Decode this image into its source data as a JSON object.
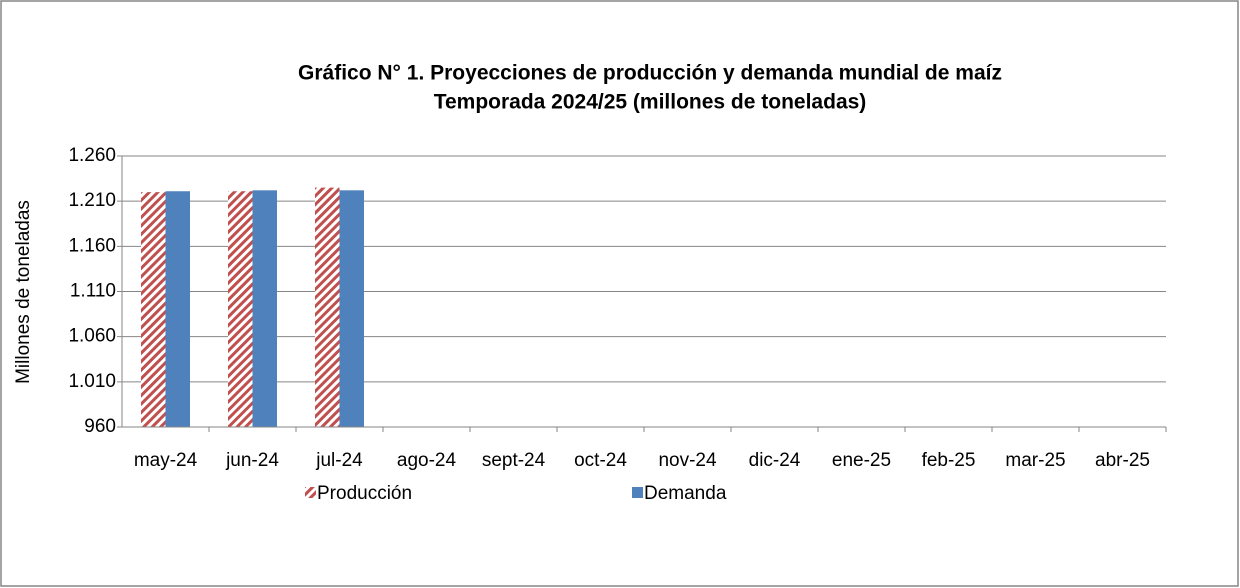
{
  "chart_data": {
    "type": "bar",
    "title": "Gráfico N° 1. Proyecciones de producción y demanda mundial de maíz",
    "subtitle": "Temporada 2024/25 (millones de toneladas)",
    "y_label": "Millones de toneladas",
    "categories": [
      "may-24",
      "jun-24",
      "jul-24",
      "ago-24",
      "sept-24",
      "oct-24",
      "nov-24",
      "dic-24",
      "ene-25",
      "feb-25",
      "mar-25",
      "abr-25"
    ],
    "series": [
      {
        "name": "Producción",
        "color": "#c0504d",
        "hatch": true,
        "values": [
          1220,
          1221,
          1225,
          null,
          null,
          null,
          null,
          null,
          null,
          null,
          null,
          null
        ]
      },
      {
        "name": "Demanda",
        "color": "#4f81bd",
        "values": [
          1221,
          1222,
          1222,
          null,
          null,
          null,
          null,
          null,
          null,
          null,
          null,
          null
        ]
      }
    ],
    "ylim": [
      960,
      1260
    ],
    "yticks": [
      {
        "value": 960,
        "label": "960"
      },
      {
        "value": 1010,
        "label": "1.010"
      },
      {
        "value": 1060,
        "label": "1.060"
      },
      {
        "value": 1110,
        "label": "1.110"
      },
      {
        "value": 1160,
        "label": "1.160"
      },
      {
        "value": 1210,
        "label": "1.210"
      },
      {
        "value": 1260,
        "label": "1.260"
      }
    ],
    "grid": true,
    "legend": "bottom"
  }
}
